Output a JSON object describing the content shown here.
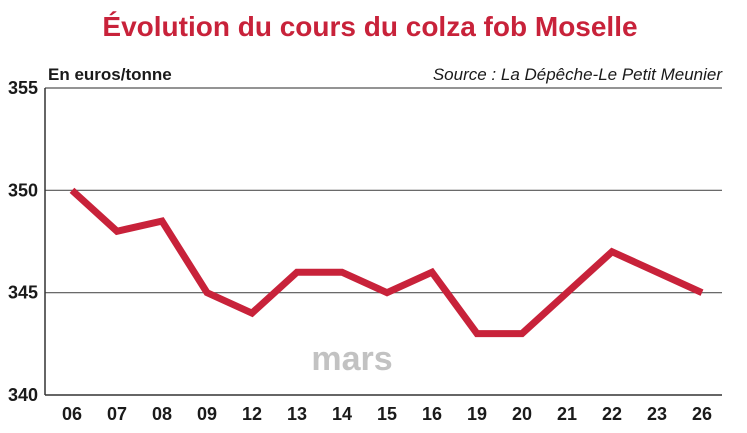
{
  "chart_data": {
    "type": "line",
    "title": "Évolution du cours du colza fob Moselle",
    "ylabel": "En euros/tonne",
    "source": "Source : La Dépêche-Le Petit Meunier",
    "annotation": "mars",
    "categories": [
      "06",
      "07",
      "08",
      "09",
      "12",
      "13",
      "14",
      "15",
      "16",
      "19",
      "20",
      "21",
      "22",
      "23",
      "26"
    ],
    "values": [
      350,
      348,
      348.5,
      345,
      344,
      346,
      346,
      345,
      346,
      343,
      343,
      345,
      347,
      346,
      345
    ],
    "y_ticks": [
      "340",
      "345",
      "350",
      "355"
    ],
    "ylim": [
      340,
      355
    ],
    "grid": true,
    "line_color": "#c8223a"
  }
}
